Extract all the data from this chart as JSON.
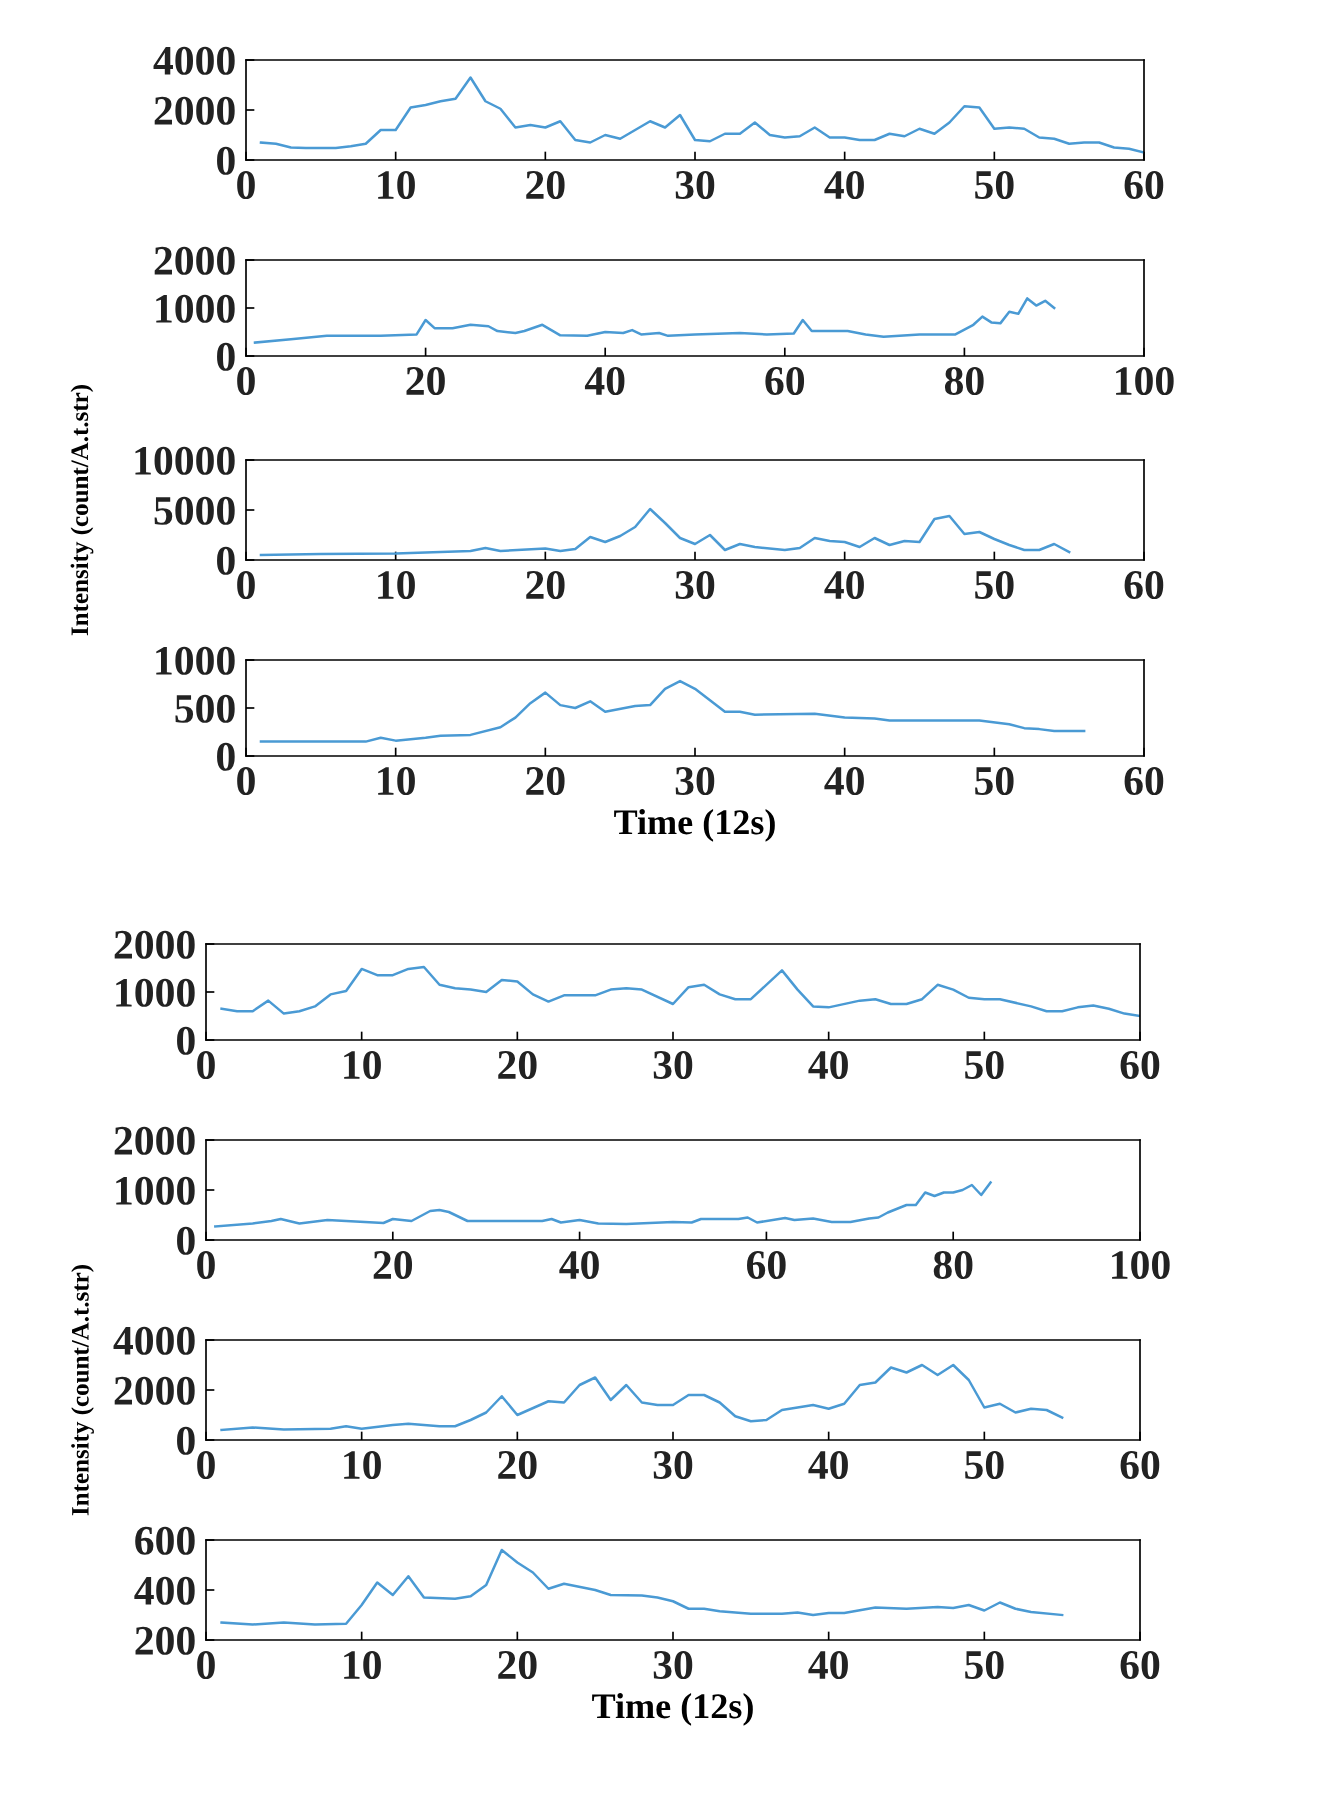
{
  "chart_data": [
    {
      "type": "line",
      "x": [
        1,
        2,
        3,
        4,
        5,
        6,
        7,
        8,
        9,
        10,
        11,
        12,
        13,
        14,
        15,
        16,
        17,
        18,
        19,
        20,
        21,
        22,
        23,
        24,
        25,
        26,
        27,
        28,
        29,
        30,
        31,
        32,
        33,
        34,
        35,
        36,
        37,
        38,
        39,
        40,
        41,
        42,
        43,
        44,
        45,
        46,
        47,
        48,
        49,
        50,
        51,
        52,
        53,
        54,
        55,
        56,
        57,
        58,
        59,
        60
      ],
      "series": [
        {
          "color": "#4a9ad4",
          "values": [
            700,
            650,
            500,
            480,
            480,
            480,
            550,
            650,
            1200,
            1200,
            2100,
            2200,
            2350,
            2450,
            3300,
            2350,
            2050,
            1300,
            1400,
            1300,
            1550,
            800,
            700,
            1000,
            850,
            1200,
            1550,
            1300,
            1800,
            800,
            750,
            1050,
            1050,
            1500,
            1000,
            900,
            950,
            1300,
            900,
            900,
            800,
            800,
            1050,
            950,
            1250,
            1050,
            1500,
            2150,
            2100,
            1250,
            1300,
            1250,
            900,
            850,
            650,
            700,
            700,
            500,
            450,
            300
          ]
        }
      ],
      "xlim": [
        0,
        60
      ],
      "xticks": [
        0,
        10,
        20,
        30,
        40,
        50,
        60
      ],
      "ylim": [
        0,
        4000
      ],
      "yticks": [
        0,
        2000,
        4000
      ],
      "grid": false
    },
    {
      "type": "line",
      "x": [
        1,
        5,
        9,
        15,
        19,
        20,
        21,
        23,
        25,
        27,
        28,
        30,
        31,
        33,
        35,
        38,
        40,
        42,
        43,
        44,
        46,
        47,
        50,
        55,
        58,
        61,
        62,
        63,
        67,
        69,
        71,
        75,
        79,
        81,
        82,
        83,
        84,
        85,
        86,
        87,
        88,
        89,
        90
      ],
      "series": [
        {
          "color": "#4a9ad4",
          "values": [
            280,
            350,
            420,
            420,
            450,
            750,
            580,
            580,
            650,
            620,
            520,
            480,
            520,
            650,
            430,
            420,
            500,
            480,
            540,
            450,
            480,
            420,
            450,
            480,
            450,
            470,
            750,
            520,
            520,
            450,
            400,
            450,
            450,
            650,
            820,
            700,
            680,
            920,
            880,
            1200,
            1050,
            1150,
            1000
          ]
        }
      ],
      "xlim": [
        0,
        100
      ],
      "xticks": [
        0,
        20,
        40,
        60,
        80,
        100
      ],
      "ylim": [
        0,
        2000
      ],
      "yticks": [
        0,
        1000,
        2000
      ],
      "grid": false
    },
    {
      "type": "line",
      "ylabel": "Intensity (count/A.t.str)",
      "x": [
        1,
        5,
        10,
        15,
        16,
        17,
        20,
        21,
        22,
        23,
        24,
        25,
        26,
        27,
        28,
        29,
        30,
        31,
        32,
        33,
        34,
        36,
        37,
        38,
        39,
        40,
        41,
        42,
        43,
        44,
        45,
        46,
        47,
        48,
        49,
        50,
        51,
        52,
        53,
        54,
        55
      ],
      "series": [
        {
          "color": "#4a9ad4",
          "values": [
            500,
            600,
            650,
            900,
            1200,
            900,
            1150,
            900,
            1100,
            2300,
            1800,
            2400,
            3300,
            5100,
            3700,
            2200,
            1600,
            2500,
            1000,
            1600,
            1300,
            1000,
            1200,
            2200,
            1900,
            1800,
            1300,
            2200,
            1500,
            1900,
            1800,
            4100,
            4400,
            2600,
            2800,
            2100,
            1500,
            1000,
            1000,
            1600,
            800
          ]
        }
      ],
      "xlim": [
        0,
        60
      ],
      "xticks": [
        0,
        10,
        20,
        30,
        40,
        50,
        60
      ],
      "ylim": [
        0,
        10000
      ],
      "yticks": [
        0,
        5000,
        10000
      ],
      "grid": false
    },
    {
      "type": "line",
      "xlabel": "Time (12s)",
      "x": [
        1,
        8,
        9,
        10,
        12,
        13,
        15,
        17,
        18,
        19,
        20,
        21,
        22,
        23,
        24,
        26,
        27,
        28,
        29,
        30,
        32,
        33,
        34,
        38,
        40,
        42,
        43,
        49,
        51,
        52,
        53,
        54,
        56
      ],
      "series": [
        {
          "color": "#4a9ad4",
          "values": [
            150,
            150,
            190,
            160,
            190,
            210,
            220,
            300,
            400,
            550,
            660,
            530,
            500,
            570,
            460,
            520,
            530,
            700,
            780,
            700,
            460,
            460,
            430,
            440,
            400,
            390,
            370,
            370,
            330,
            290,
            280,
            260,
            260
          ]
        }
      ],
      "xlim": [
        0,
        60
      ],
      "xticks": [
        0,
        10,
        20,
        30,
        40,
        50,
        60
      ],
      "ylim": [
        0,
        1000
      ],
      "yticks": [
        0,
        500,
        1000
      ],
      "grid": false
    },
    {
      "type": "line",
      "x": [
        1,
        2,
        3,
        4,
        5,
        6,
        7,
        8,
        9,
        10,
        11,
        12,
        13,
        14,
        15,
        16,
        17,
        18,
        19,
        20,
        21,
        22,
        23,
        25,
        26,
        27,
        28,
        30,
        31,
        32,
        33,
        34,
        35,
        37,
        38,
        39,
        40,
        42,
        43,
        44,
        45,
        46,
        47,
        48,
        49,
        50,
        51,
        53,
        54,
        55,
        56,
        57,
        58,
        59,
        60
      ],
      "series": [
        {
          "color": "#4a9ad4",
          "values": [
            650,
            600,
            600,
            820,
            550,
            600,
            700,
            950,
            1020,
            1480,
            1350,
            1350,
            1480,
            1520,
            1150,
            1080,
            1050,
            1000,
            1250,
            1220,
            950,
            800,
            930,
            930,
            1050,
            1080,
            1050,
            750,
            1100,
            1150,
            950,
            850,
            850,
            1450,
            1050,
            700,
            680,
            820,
            850,
            750,
            750,
            850,
            1150,
            1050,
            880,
            850,
            850,
            700,
            600,
            600,
            680,
            720,
            650,
            550,
            500
          ]
        }
      ],
      "xlim": [
        0,
        60
      ],
      "xticks": [
        0,
        10,
        20,
        30,
        40,
        50,
        60
      ],
      "ylim": [
        0,
        2000
      ],
      "yticks": [
        0,
        1000,
        2000
      ],
      "grid": false
    },
    {
      "type": "line",
      "x": [
        1,
        5,
        7,
        8,
        10,
        13,
        19,
        20,
        22,
        24,
        25,
        26,
        28,
        36,
        37,
        38,
        40,
        42,
        45,
        50,
        52,
        53,
        57,
        58,
        59,
        62,
        63,
        65,
        67,
        69,
        71,
        72,
        73,
        75,
        76,
        77,
        78,
        79,
        80,
        81,
        82,
        83,
        84
      ],
      "series": [
        {
          "color": "#4a9ad4",
          "values": [
            270,
            330,
            380,
            420,
            330,
            400,
            340,
            420,
            380,
            580,
            600,
            560,
            380,
            380,
            420,
            350,
            400,
            330,
            320,
            360,
            350,
            420,
            420,
            450,
            350,
            440,
            400,
            430,
            360,
            360,
            430,
            450,
            550,
            700,
            700,
            950,
            880,
            950,
            950,
            1000,
            1100,
            900,
            1150
          ]
        }
      ],
      "xlim": [
        0,
        100
      ],
      "xticks": [
        0,
        20,
        40,
        60,
        80,
        100
      ],
      "ylim": [
        0,
        2000
      ],
      "yticks": [
        0,
        1000,
        2000
      ],
      "grid": false
    },
    {
      "type": "line",
      "ylabel": "Intensity (count/A.t.str)",
      "x": [
        1,
        3,
        5,
        8,
        9,
        10,
        12,
        13,
        15,
        16,
        17,
        18,
        19,
        20,
        22,
        23,
        24,
        25,
        26,
        27,
        28,
        29,
        30,
        31,
        32,
        33,
        34,
        35,
        36,
        37,
        38,
        39,
        40,
        41,
        42,
        43,
        44,
        45,
        46,
        47,
        48,
        49,
        50,
        51,
        52,
        53,
        54,
        55
      ],
      "series": [
        {
          "color": "#4a9ad4",
          "values": [
            400,
            500,
            420,
            450,
            550,
            450,
            600,
            650,
            550,
            550,
            800,
            1100,
            1750,
            1000,
            1550,
            1500,
            2200,
            2500,
            1600,
            2200,
            1500,
            1400,
            1400,
            1800,
            1800,
            1500,
            950,
            750,
            800,
            1200,
            1300,
            1400,
            1250,
            1450,
            2200,
            2300,
            2900,
            2700,
            3000,
            2600,
            3000,
            2400,
            1300,
            1450,
            1100,
            1250,
            1200,
            900
          ]
        }
      ],
      "xlim": [
        0,
        60
      ],
      "xticks": [
        0,
        10,
        20,
        30,
        40,
        50,
        60
      ],
      "ylim": [
        0,
        4000
      ],
      "yticks": [
        0,
        2000,
        4000
      ],
      "grid": false
    },
    {
      "type": "line",
      "xlabel": "Time (12s)",
      "x": [
        1,
        3,
        5,
        7,
        9,
        10,
        11,
        12,
        13,
        14,
        16,
        17,
        18,
        19,
        20,
        21,
        22,
        23,
        25,
        26,
        28,
        29,
        30,
        31,
        32,
        33,
        35,
        37,
        38,
        39,
        40,
        41,
        43,
        45,
        47,
        48,
        49,
        50,
        51,
        52,
        53,
        55
      ],
      "series": [
        {
          "color": "#4a9ad4",
          "values": [
            270,
            262,
            270,
            262,
            265,
            340,
            430,
            380,
            455,
            370,
            365,
            375,
            420,
            560,
            510,
            470,
            405,
            425,
            400,
            380,
            378,
            370,
            355,
            325,
            325,
            315,
            305,
            305,
            310,
            300,
            308,
            308,
            330,
            325,
            332,
            328,
            340,
            318,
            350,
            325,
            312,
            300
          ]
        }
      ],
      "xlim": [
        0,
        60
      ],
      "xticks": [
        0,
        10,
        20,
        30,
        40,
        50,
        60
      ],
      "ylim": [
        200,
        600
      ],
      "yticks": [
        200,
        400,
        600
      ],
      "grid": false
    }
  ]
}
